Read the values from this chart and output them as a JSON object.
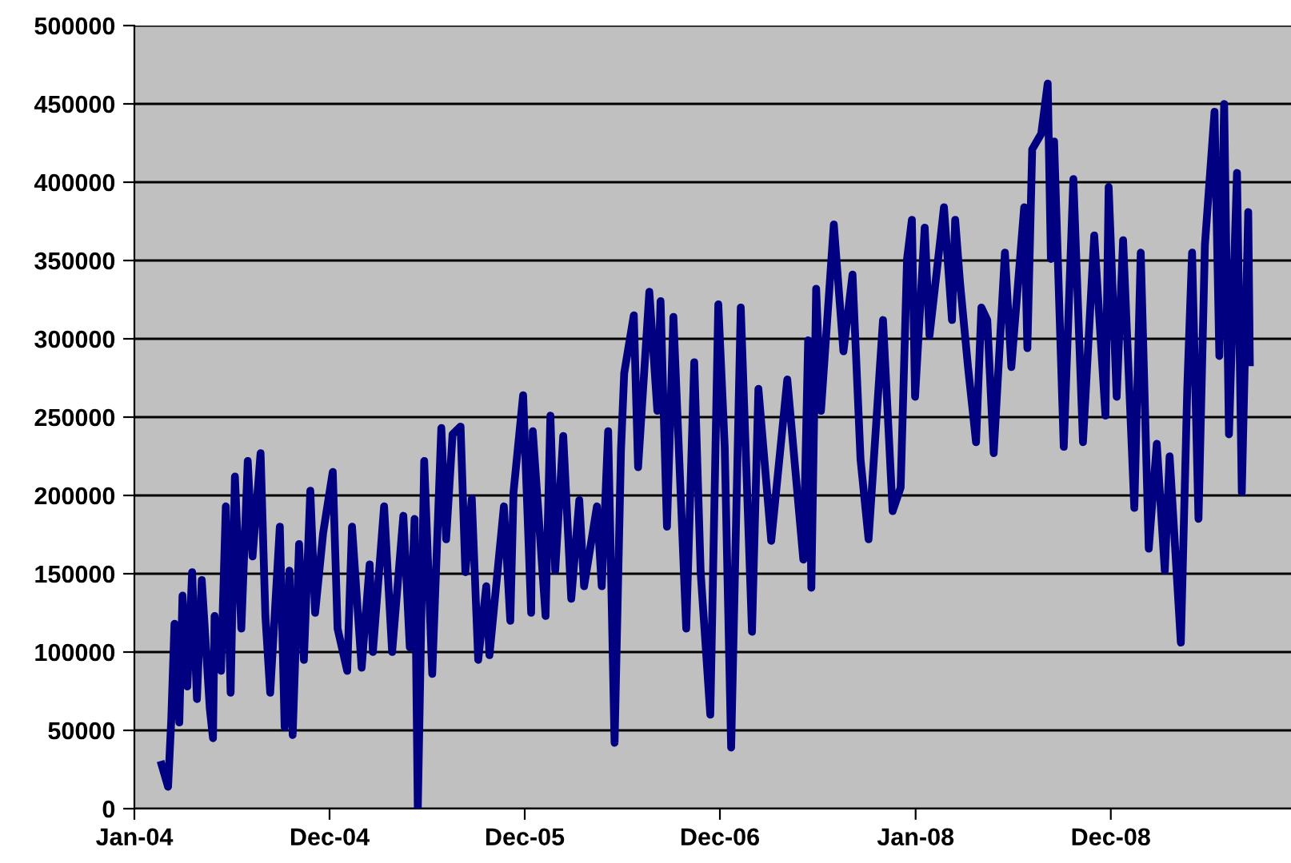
{
  "chart_data": {
    "type": "line",
    "x": [
      "2004-02-21",
      "2004-03-04",
      "2004-03-10",
      "2004-03-16",
      "2004-03-25",
      "2004-03-31",
      "2004-04-09",
      "2004-04-18",
      "2004-04-27",
      "2004-05-06",
      "2004-05-21",
      "2004-05-27",
      "2004-05-30",
      "2004-06-11",
      "2004-06-20",
      "2004-06-29",
      "2004-07-07",
      "2004-07-19",
      "2004-07-31",
      "2004-08-09",
      "2004-08-24",
      "2004-09-02",
      "2004-09-11",
      "2004-09-29",
      "2004-10-08",
      "2004-10-17",
      "2004-10-23",
      "2004-11-04",
      "2004-11-13",
      "2004-11-25",
      "2004-12-04",
      "2004-12-19",
      "2005-01-06",
      "2005-01-15",
      "2005-02-02",
      "2005-02-11",
      "2005-03-01",
      "2005-03-16",
      "2005-03-22",
      "2005-04-12",
      "2005-04-27",
      "2005-05-18",
      "2005-05-30",
      "2005-06-08",
      "2005-06-14",
      "2005-06-26",
      "2005-07-11",
      "2005-07-28",
      "2005-08-06",
      "2005-08-18",
      "2005-09-02",
      "2005-09-11",
      "2005-09-23",
      "2005-10-05",
      "2005-10-20",
      "2005-10-26",
      "2005-11-22",
      "2005-12-04",
      "2005-12-10",
      "2005-12-28",
      "2006-01-12",
      "2006-01-15",
      "2006-02-08",
      "2006-02-17",
      "2006-02-26",
      "2006-03-13",
      "2006-03-28",
      "2006-04-12",
      "2006-04-21",
      "2006-05-15",
      "2006-05-24",
      "2006-06-05",
      "2006-06-17",
      "2006-06-29",
      "2006-07-05",
      "2006-07-23",
      "2006-07-31",
      "2006-08-21",
      "2006-09-05",
      "2006-09-11",
      "2006-09-23",
      "2006-10-05",
      "2006-10-29",
      "2006-11-13",
      "2006-11-25",
      "2006-12-13",
      "2006-12-28",
      "2007-01-09",
      "2007-01-21",
      "2007-02-08",
      "2007-03-01",
      "2007-03-13",
      "2007-04-06",
      "2007-05-06",
      "2007-06-05",
      "2007-06-14",
      "2007-06-20",
      "2007-06-29",
      "2007-07-08",
      "2007-08-01",
      "2007-08-19",
      "2007-09-05",
      "2007-09-20",
      "2007-10-05",
      "2007-11-01",
      "2007-11-19",
      "2007-12-04",
      "2007-12-16",
      "2007-12-25",
      "2007-12-31",
      "2008-01-18",
      "2008-01-27",
      "2008-02-23",
      "2008-03-09",
      "2008-03-15",
      "2008-03-24",
      "2008-04-08",
      "2008-04-23",
      "2008-05-03",
      "2008-05-14",
      "2008-05-26",
      "2008-06-16",
      "2008-06-28",
      "2008-07-22",
      "2008-07-28",
      "2008-08-06",
      "2008-08-23",
      "2008-09-04",
      "2008-09-10",
      "2008-09-16",
      "2008-10-04",
      "2008-10-22",
      "2008-11-09",
      "2008-11-30",
      "2008-12-21",
      "2008-12-27",
      "2009-01-11",
      "2009-01-23",
      "2009-02-13",
      "2009-02-25",
      "2009-03-12",
      "2009-03-27",
      "2009-04-11",
      "2009-04-20",
      "2009-05-11",
      "2009-05-23",
      "2009-06-01",
      "2009-06-13",
      "2009-06-25",
      "2009-07-13",
      "2009-07-22",
      "2009-07-31",
      "2009-08-09",
      "2009-08-24",
      "2009-09-02",
      "2009-09-14",
      "2009-09-17"
    ],
    "series": [
      {
        "color": "#000080",
        "values": [
          28000,
          14000,
          57000,
          118000,
          55000,
          136000,
          78000,
          151000,
          70000,
          146000,
          64000,
          45000,
          123000,
          88000,
          193000,
          74000,
          212000,
          115000,
          222000,
          161000,
          227000,
          123000,
          74000,
          180000,
          52000,
          152000,
          47000,
          169000,
          95000,
          203000,
          125000,
          176000,
          215000,
          115000,
          88000,
          180000,
          90000,
          156000,
          100000,
          193000,
          100000,
          187000,
          103000,
          185000,
          0,
          222000,
          86000,
          243000,
          172000,
          239000,
          244000,
          151000,
          198000,
          95000,
          142000,
          98000,
          193000,
          120000,
          202000,
          264000,
          125000,
          241000,
          123000,
          251000,
          152000,
          238000,
          134000,
          197000,
          142000,
          193000,
          142000,
          241000,
          42000,
          229000,
          278000,
          315000,
          218000,
          330000,
          254000,
          324000,
          180000,
          314000,
          115000,
          285000,
          151000,
          60000,
          322000,
          231000,
          39000,
          320000,
          113000,
          268000,
          171000,
          274000,
          159000,
          299000,
          141000,
          332000,
          254000,
          373000,
          292000,
          341000,
          223000,
          172000,
          312000,
          190000,
          205000,
          351000,
          376000,
          263000,
          371000,
          302000,
          384000,
          312000,
          376000,
          336000,
          282000,
          234000,
          320000,
          312000,
          227000,
          355000,
          282000,
          384000,
          294000,
          421000,
          431000,
          463000,
          351000,
          426000,
          231000,
          402000,
          234000,
          366000,
          251000,
          397000,
          263000,
          363000,
          192000,
          355000,
          166000,
          233000,
          152000,
          225000,
          106000,
          268000,
          355000,
          185000,
          360000,
          445000,
          289000,
          450000,
          239000,
          406000,
          202000,
          381000,
          285000
        ]
      }
    ],
    "xlim": [
      "2004-01-01",
      "2009-12-03"
    ],
    "xticks": [
      {
        "value": "2004-01-01",
        "label": "Jan-04"
      },
      {
        "value": "2004-12-31",
        "label": "Dec-04"
      },
      {
        "value": "2005-12-31",
        "label": "Dec-05"
      },
      {
        "value": "2006-12-31",
        "label": "Dec-06"
      },
      {
        "value": "2008-01-01",
        "label": "Jan-08"
      },
      {
        "value": "2008-12-31",
        "label": "Dec-08"
      }
    ],
    "ylim": [
      0,
      500000
    ],
    "yticks": [
      0,
      50000,
      100000,
      150000,
      200000,
      250000,
      300000,
      350000,
      400000,
      450000,
      500000
    ],
    "grid": "y",
    "marker": "none",
    "line_style": "solid"
  }
}
